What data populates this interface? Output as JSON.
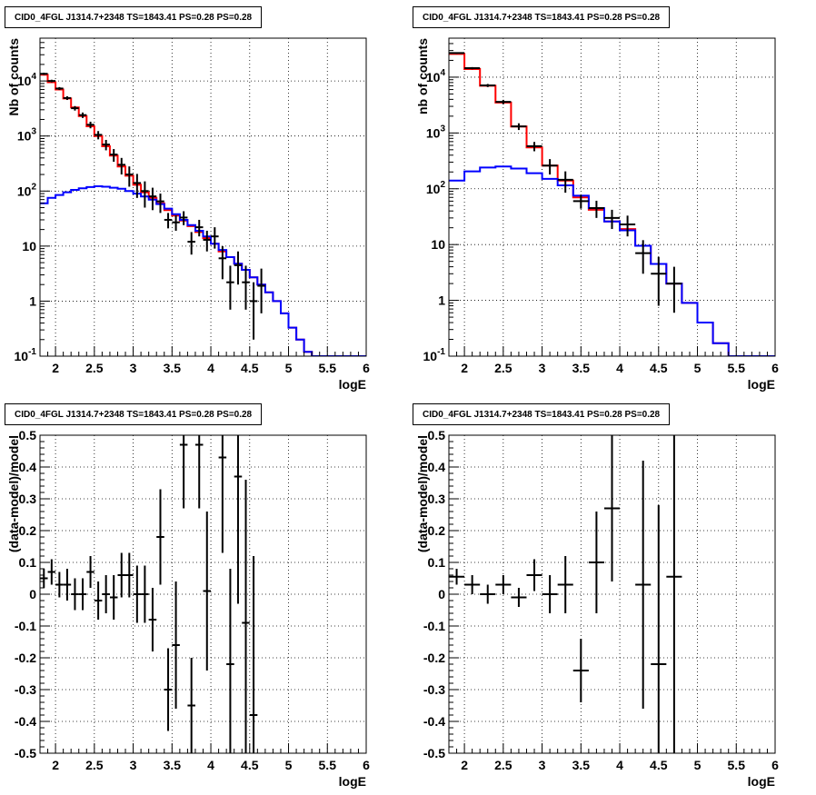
{
  "chart_data": [
    {
      "type": "histogram",
      "title": "CID0_4FGL J1314.7+2348 TS=1843.41 PS=0.28 PS=0.28",
      "xlabel": "logE",
      "ylabel": "Nb of counts",
      "xlim": [
        1.8,
        6
      ],
      "ylim": [
        0.1,
        60000
      ],
      "yscale": "log",
      "grid": true,
      "x_ticks": [
        "2",
        "2.5",
        "3",
        "3.5",
        "4",
        "4.5",
        "5",
        "5.5",
        "6"
      ],
      "y_ticks": [
        "10^-1",
        "1",
        "10",
        "10^2",
        "10^3",
        "10^4"
      ],
      "bin_edges": [
        1.8,
        1.9,
        2.0,
        2.1,
        2.2,
        2.3,
        2.4,
        2.5,
        2.6,
        2.7,
        2.8,
        2.9,
        3.0,
        3.1,
        3.2,
        3.3,
        3.4,
        3.5,
        3.6,
        3.7,
        3.8,
        3.9,
        4.0,
        4.1,
        4.2,
        4.3,
        4.4,
        4.5,
        4.6,
        4.7,
        4.8,
        4.9,
        5.0,
        5.1,
        5.2,
        5.3,
        5.4,
        5.5,
        5.6,
        5.7,
        5.8,
        5.9,
        6.0
      ],
      "series": [
        {
          "values": [
            13000,
            9500,
            7000,
            4800,
            3300,
            2300,
            1500,
            1000,
            650,
            440,
            280,
            190,
            130,
            95,
            75,
            60,
            45,
            36,
            29,
            23,
            18,
            14,
            11,
            8,
            6.3,
            4.8,
            3.7,
            2.7,
            2.0,
            1.45,
            1.0,
            0.6,
            0.33,
            0.2,
            0.12,
            0.1,
            0.1,
            0.1,
            0.1,
            0.1,
            0.1,
            0.1
          ]
        },
        {
          "values": [
            60,
            75,
            85,
            95,
            105,
            112,
            118,
            122,
            120,
            115,
            110,
            100,
            90,
            80,
            70,
            58,
            48,
            38,
            30,
            24,
            19,
            15,
            11,
            8.5,
            6.3,
            4.8,
            3.7,
            2.7,
            2.0,
            1.45,
            1.0,
            0.6,
            0.33,
            0.2,
            0.12,
            0.1,
            0.1,
            0.1,
            0.1,
            0.1,
            0.1,
            0.1
          ]
        },
        {
          "name": "data",
          "x": [
            1.85,
            1.95,
            2.05,
            2.15,
            2.25,
            2.35,
            2.45,
            2.55,
            2.65,
            2.75,
            2.85,
            2.95,
            3.05,
            3.15,
            3.25,
            3.35,
            3.45,
            3.55,
            3.65,
            3.75,
            3.85,
            3.95,
            4.05,
            4.15,
            4.25,
            4.35,
            4.45,
            4.55,
            4.65
          ],
          "y": [
            13500,
            10000,
            7300,
            4900,
            3200,
            2400,
            1600,
            1050,
            700,
            460,
            300,
            200,
            140,
            100,
            80,
            65,
            30,
            27,
            33,
            12,
            22,
            13,
            15,
            6,
            2.2,
            4.5,
            2.2,
            1,
            1.9
          ],
          "err_lo": [
            650,
            550,
            450,
            380,
            300,
            270,
            220,
            180,
            150,
            120,
            100,
            80,
            65,
            50,
            35,
            25,
            9,
            8,
            9,
            5,
            7,
            5,
            6,
            3.5,
            1.5,
            2.5,
            1.5,
            0.8,
            1.3
          ],
          "err_hi": [
            650,
            550,
            450,
            380,
            300,
            270,
            220,
            180,
            150,
            120,
            100,
            80,
            65,
            50,
            35,
            25,
            10,
            9,
            10,
            6,
            8,
            6,
            7,
            4,
            2.2,
            3.5,
            2.2,
            1.2,
            2
          ]
        }
      ]
    },
    {
      "type": "histogram",
      "title": "CID0_4FGL J1314.7+2348 TS=1843.41 PS=0.28 PS=0.28",
      "xlabel": "logE",
      "ylabel": "nb of counts",
      "xlim": [
        1.8,
        6
      ],
      "ylim": [
        0.1,
        50000
      ],
      "yscale": "log",
      "grid": true,
      "x_ticks": [
        "2",
        "2.5",
        "3",
        "3.5",
        "4",
        "4.5",
        "5",
        "5.5",
        "6"
      ],
      "y_ticks": [
        "10^-1",
        "1",
        "10",
        "10^2",
        "10^3",
        "10^4"
      ],
      "bin_edges": [
        1.8,
        2.0,
        2.2,
        2.4,
        2.6,
        2.8,
        3.0,
        3.2,
        3.4,
        3.6,
        3.8,
        4.0,
        4.2,
        4.4,
        4.6,
        4.8,
        5.0,
        5.2,
        5.4,
        5.6,
        5.8,
        6.0
      ],
      "series": [
        {
          "values": [
            26000,
            14000,
            7000,
            3500,
            1300,
            550,
            260,
            140,
            70,
            42,
            26,
            19,
            9.5,
            4.5,
            2.0,
            0.9,
            0.4,
            0.17,
            0.1,
            0.1,
            0.1
          ]
        },
        {
          "values": [
            140,
            205,
            240,
            250,
            230,
            190,
            150,
            115,
            75,
            45,
            26,
            18,
            9.5,
            4.5,
            2.0,
            0.9,
            0.4,
            0.17,
            0.1,
            0.1,
            0.1
          ]
        },
        {
          "name": "data",
          "x": [
            1.9,
            2.1,
            2.3,
            2.5,
            2.7,
            2.9,
            3.1,
            3.3,
            3.5,
            3.7,
            3.9,
            4.1,
            4.3,
            4.5,
            4.7
          ],
          "y": [
            27000,
            14500,
            7100,
            3600,
            1310,
            580,
            260,
            145,
            60,
            45,
            30,
            23,
            7,
            3,
            2
          ],
          "err_lo": [
            900,
            650,
            450,
            320,
            180,
            110,
            80,
            60,
            16,
            15,
            11,
            9,
            4,
            2.2,
            1.4
          ],
          "err_hi": [
            900,
            650,
            450,
            320,
            180,
            110,
            80,
            60,
            18,
            16,
            12,
            10,
            5,
            3,
            2
          ]
        }
      ]
    },
    {
      "type": "scatter",
      "title": "CID0_4FGL J1314.7+2348 TS=1843.41 PS=0.28 PS=0.28",
      "xlabel": "logE",
      "ylabel": "(data-model)/model",
      "xlim": [
        1.8,
        6
      ],
      "ylim": [
        -0.5,
        0.5
      ],
      "grid": true,
      "x_ticks": [
        "2",
        "2.5",
        "3",
        "3.5",
        "4",
        "4.5",
        "5",
        "5.5",
        "6"
      ],
      "y_ticks": [
        "-0.5",
        "-0.4",
        "-0.3",
        "-0.2",
        "-0.1",
        "0",
        "0.1",
        "0.2",
        "0.3",
        "0.4",
        "0.5"
      ],
      "x_halfwidth": 0.05,
      "series": [
        {
          "name": "residuals",
          "x": [
            1.85,
            1.95,
            2.05,
            2.15,
            2.25,
            2.35,
            2.45,
            2.55,
            2.65,
            2.75,
            2.85,
            2.95,
            3.05,
            3.15,
            3.25,
            3.35,
            3.45,
            3.55,
            3.65,
            3.75,
            3.85,
            3.95,
            4.15,
            4.25,
            4.35,
            4.45,
            4.55
          ],
          "y": [
            0.05,
            0.07,
            0.03,
            0.03,
            0.0,
            0.0,
            0.07,
            -0.02,
            0.0,
            -0.01,
            0.06,
            0.06,
            0.0,
            0.0,
            -0.08,
            0.18,
            -0.3,
            -0.16,
            0.47,
            -0.35,
            0.47,
            0.01,
            0.43,
            -0.22,
            0.37,
            -0.09,
            -0.38
          ],
          "err": [
            0.03,
            0.04,
            0.04,
            0.05,
            0.05,
            0.05,
            0.05,
            0.06,
            0.06,
            0.07,
            0.07,
            0.07,
            0.09,
            0.09,
            0.1,
            0.15,
            0.13,
            0.2,
            0.2,
            0.15,
            0.2,
            0.25,
            0.3,
            0.3,
            0.4,
            0.45,
            0.5
          ]
        }
      ]
    },
    {
      "type": "scatter",
      "title": "CID0_4FGL J1314.7+2348 TS=1843.41 PS=0.28 PS=0.28",
      "xlabel": "logE",
      "ylabel": "(data-model)/model",
      "xlim": [
        1.8,
        6
      ],
      "ylim": [
        -0.5,
        0.5
      ],
      "grid": true,
      "x_ticks": [
        "2",
        "2.5",
        "3",
        "3.5",
        "4",
        "4.5",
        "5",
        "5.5",
        "6"
      ],
      "y_ticks": [
        "-0.5",
        "-0.4",
        "-0.3",
        "-0.2",
        "-0.1",
        "0",
        "0.1",
        "0.2",
        "0.3",
        "0.4",
        "0.5"
      ],
      "x_halfwidth": 0.1,
      "series": [
        {
          "name": "residuals",
          "x": [
            1.9,
            2.1,
            2.3,
            2.5,
            2.7,
            2.9,
            3.1,
            3.3,
            3.5,
            3.7,
            3.9,
            4.3,
            4.5,
            4.7
          ],
          "y": [
            0.055,
            0.03,
            0.0,
            0.03,
            -0.01,
            0.06,
            0.0,
            0.03,
            -0.24,
            0.1,
            0.27,
            0.03,
            -0.22,
            0.055
          ],
          "err": [
            0.025,
            0.03,
            0.03,
            0.03,
            0.03,
            0.05,
            0.06,
            0.09,
            0.1,
            0.16,
            0.23,
            0.39,
            0.5,
            0.6
          ]
        }
      ]
    }
  ]
}
